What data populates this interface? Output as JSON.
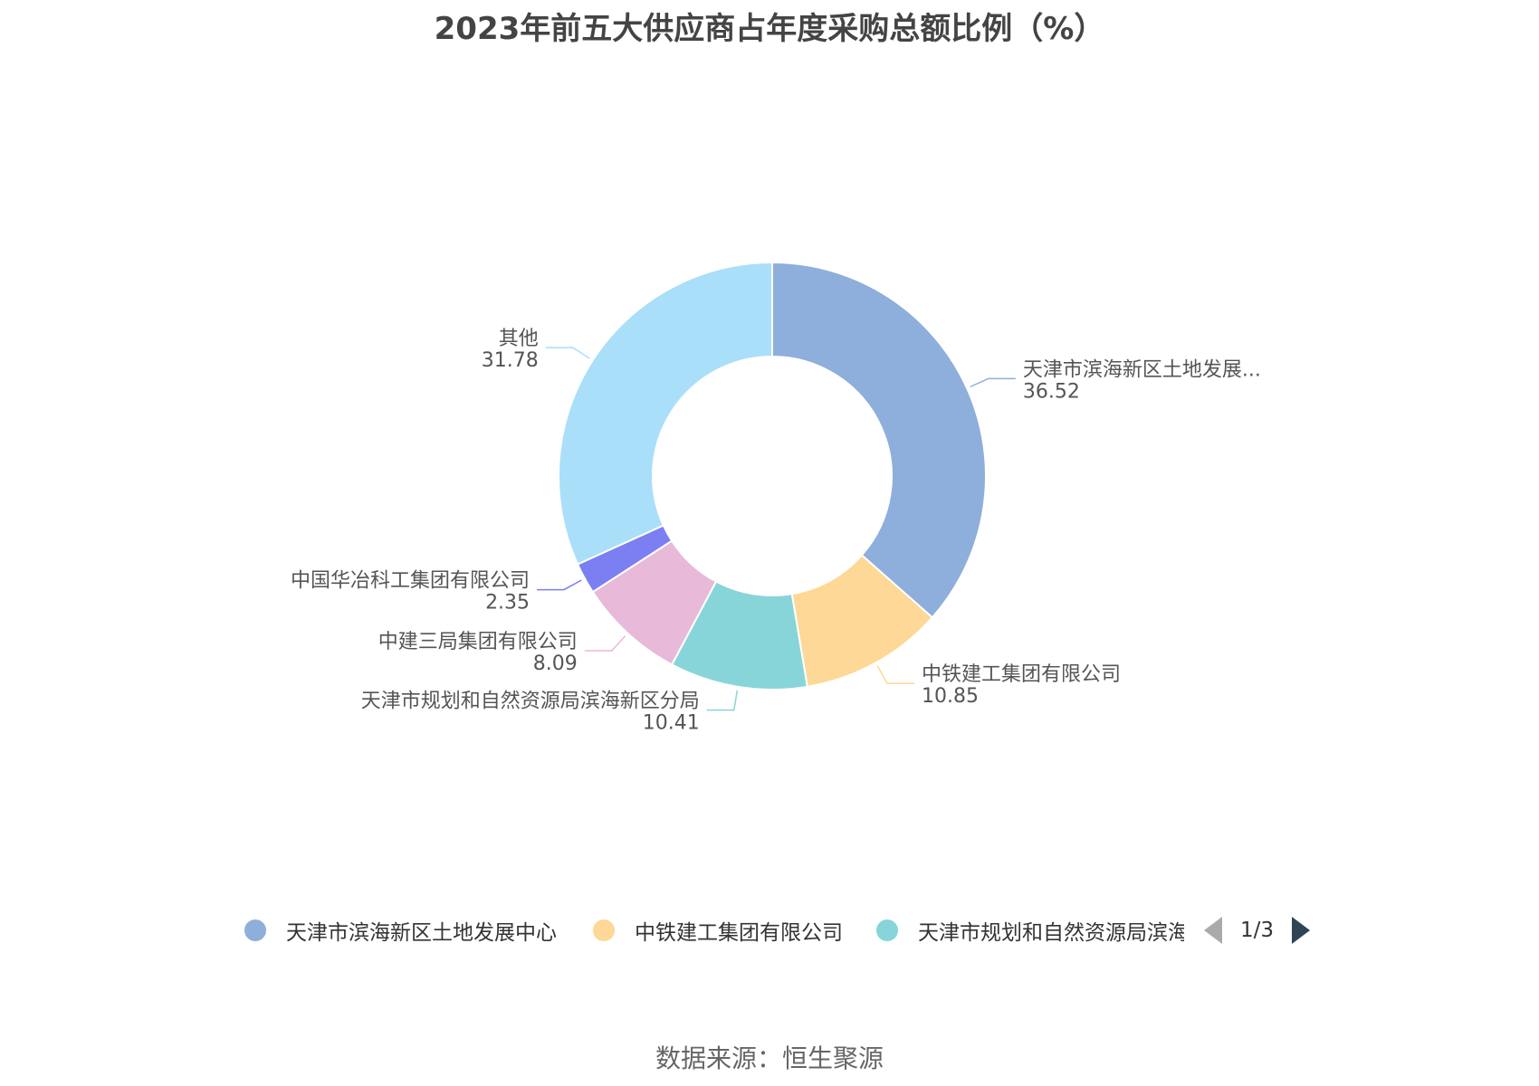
{
  "chart_data": {
    "type": "pie",
    "title": "2023年前五大供应商占年度采购总额比例（%）",
    "slices": [
      {
        "name": "天津市滨海新区土地发展中心",
        "label": "天津市滨海新区土地发展...",
        "value": 36.52,
        "value_text": "36.52",
        "color": "#8eaedb"
      },
      {
        "name": "中铁建工集团有限公司",
        "label": "中铁建工集团有限公司",
        "value": 10.85,
        "value_text": "10.85",
        "color": "#fdd896"
      },
      {
        "name": "天津市规划和自然资源局滨海新区分局",
        "label": "天津市规划和自然资源局滨海新区分局",
        "value": 10.41,
        "value_text": "10.41",
        "color": "#87d5d8"
      },
      {
        "name": "中建三局集团有限公司",
        "label": "中建三局集团有限公司",
        "value": 8.09,
        "value_text": "8.09",
        "color": "#e8b9d9"
      },
      {
        "name": "中国华冶科工集团有限公司",
        "label": "中国华冶科工集团有限公司",
        "value": 2.35,
        "value_text": "2.35",
        "color": "#7b7ff2"
      },
      {
        "name": "其他",
        "label": "其他",
        "value": 31.78,
        "value_text": "31.78",
        "color": "#a9dff9"
      }
    ]
  },
  "legend": {
    "items": [
      {
        "text": "天津市滨海新区土地发展中心",
        "color": "#8eaedb"
      },
      {
        "text": "中铁建工集团有限公司",
        "color": "#fdd896"
      },
      {
        "text": "天津市规划和自然资源局滨海新区分局",
        "color": "#87d5d8"
      }
    ],
    "page": "1/3"
  },
  "source": "数据来源：恒生聚源"
}
